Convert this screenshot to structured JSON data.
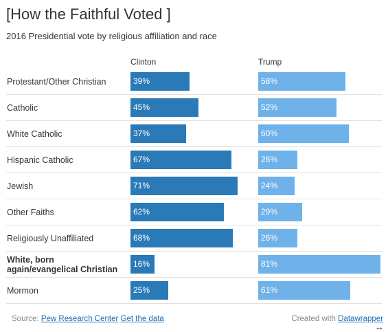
{
  "chart_data": {
    "type": "bar",
    "title": "[How the Faithful Voted ]",
    "subtitle": "2016 Presidential vote by religious affiliation and race",
    "categories": [
      "Protestant/Other Christian",
      "Catholic",
      "White Catholic",
      "Hispanic Catholic",
      "Jewish",
      "Other Faiths",
      "Religiously Unaffiliated",
      "White, born again/evangelical Christian",
      "Mormon"
    ],
    "bold_categories": [
      "White, born again/evangelical Christian"
    ],
    "series": [
      {
        "name": "Clinton",
        "values": [
          39,
          45,
          37,
          67,
          71,
          62,
          68,
          16,
          25
        ],
        "color": "#2a7ab8"
      },
      {
        "name": "Trump",
        "values": [
          58,
          52,
          60,
          26,
          24,
          29,
          26,
          81,
          61
        ],
        "color": "#6fb2ea"
      }
    ],
    "value_suffix": "%",
    "ylim": [
      0,
      81
    ]
  },
  "footer": {
    "source_prefix": "Source: ",
    "source_link": "Pew Research Center",
    "get_data": "Get the data",
    "created_prefix": "Created with ",
    "created_link": "Datawrapper"
  },
  "icons": {
    "resize": "resize-arrows-icon"
  }
}
